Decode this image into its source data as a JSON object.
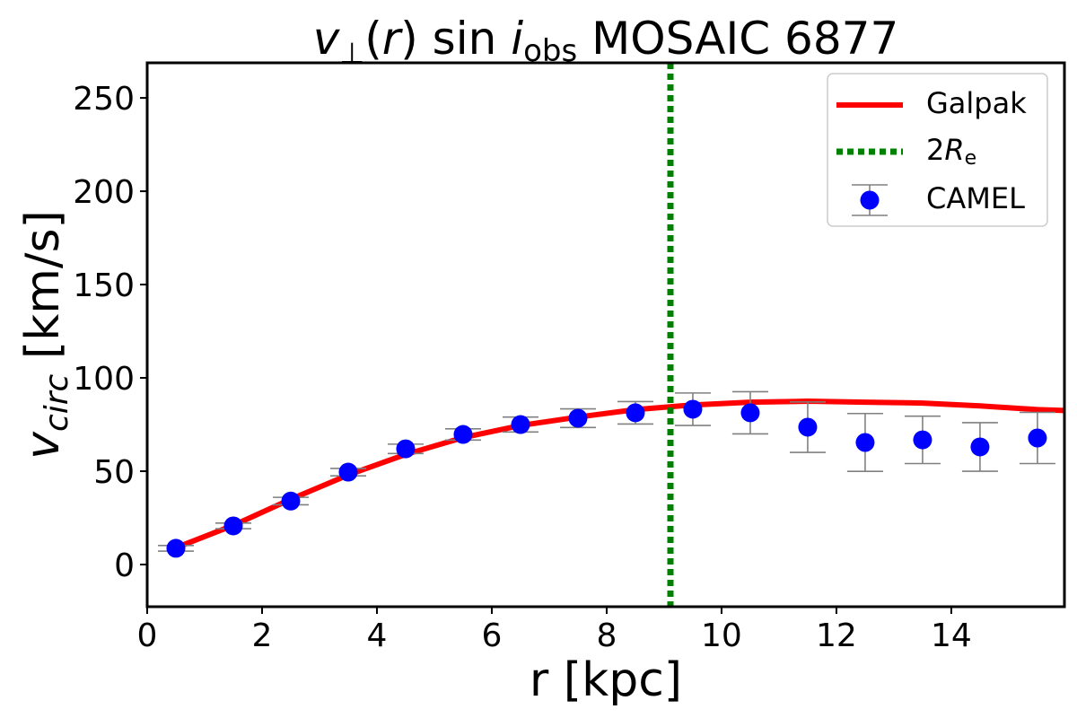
{
  "chart_data": {
    "type": "line-errorbar",
    "title": [
      "v",
      "⊥",
      "(",
      "r",
      ") sin ",
      "i",
      "obs",
      " MOSAIC 6877"
    ],
    "xlabel": "r [kpc]",
    "ylabel": [
      "v",
      "circ",
      " [km/s]"
    ],
    "xlim": [
      0,
      15.97
    ],
    "ylim": [
      -22.6,
      268.8
    ],
    "xticks": [
      0,
      2,
      4,
      6,
      8,
      10,
      12,
      14
    ],
    "yticks": [
      0,
      50,
      100,
      150,
      200,
      250
    ],
    "legend": "upper right",
    "series": [
      {
        "name": "Galpak",
        "type": "line",
        "color": "#ff0000",
        "x": [
          0.5,
          1.5,
          2.5,
          3.5,
          4.5,
          5.5,
          6.5,
          7.5,
          8.5,
          9.5,
          10.5,
          11.5,
          12.5,
          13.5,
          14.5,
          15.5,
          15.97
        ],
        "values": [
          9,
          21,
          35,
          48,
          59,
          68,
          74.5,
          79,
          83,
          85.5,
          87,
          87.5,
          87,
          86.5,
          85,
          83,
          82.5
        ]
      },
      {
        "name": "CAMEL",
        "type": "errorbar",
        "color": "#0000ff",
        "ecolor": "#808080",
        "x": [
          0.5,
          1.5,
          2.5,
          3.5,
          4.5,
          5.5,
          6.5,
          7.5,
          8.5,
          9.5,
          10.5,
          11.5,
          12.5,
          13.5,
          14.5,
          15.5
        ],
        "values": [
          8.7,
          20.7,
          34,
          49.5,
          62,
          69.7,
          75,
          78.4,
          81.3,
          83.2,
          81.3,
          73.6,
          65.4,
          66.8,
          63,
          67.8
        ],
        "errors": [
          1.5,
          1.5,
          2,
          2,
          2.5,
          3,
          4,
          5,
          6,
          8.7,
          11.3,
          13.5,
          15.5,
          12.7,
          13,
          13.7
        ]
      }
    ],
    "vlines": [
      {
        "name": [
          "2",
          "R",
          "e"
        ],
        "x": 9.11,
        "color": "#008000"
      }
    ]
  }
}
